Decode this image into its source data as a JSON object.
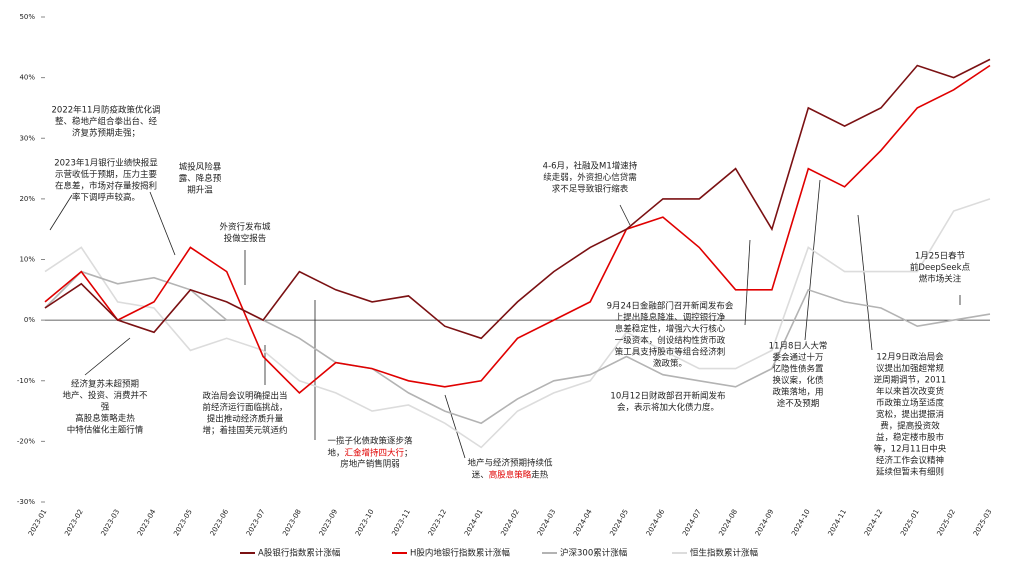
{
  "chart_data": {
    "type": "line",
    "x": [
      "2023-01",
      "2023-02",
      "2023-03",
      "2023-04",
      "2023-05",
      "2023-06",
      "2023-07",
      "2023-08",
      "2023-09",
      "2023-10",
      "2023-11",
      "2023-12",
      "2024-01",
      "2024-02",
      "2024-03",
      "2024-04",
      "2024-05",
      "2024-06",
      "2024-07",
      "2024-08",
      "2024-09",
      "2024-10",
      "2024-11",
      "2024-12",
      "2025-01",
      "2025-02",
      "2025-03"
    ],
    "series": [
      {
        "name": "A股银行指数累计涨幅",
        "color": "#7b1113",
        "values": [
          2,
          6,
          0,
          -2,
          5,
          3,
          0,
          8,
          5,
          3,
          4,
          -1,
          -3,
          3,
          8,
          12,
          15,
          20,
          20,
          25,
          15,
          35,
          32,
          35,
          42,
          40,
          43
        ]
      },
      {
        "name": "H股内地银行指数累计涨幅",
        "color": "#e00000",
        "values": [
          3,
          8,
          0,
          3,
          12,
          8,
          -6,
          -12,
          -7,
          -8,
          -10,
          -11,
          -10,
          -3,
          0,
          3,
          15,
          17,
          12,
          5,
          5,
          25,
          22,
          28,
          35,
          38,
          42
        ]
      },
      {
        "name": "沪深300累计涨幅",
        "color": "#b3b3b3",
        "values": [
          2,
          8,
          6,
          7,
          5,
          0,
          0,
          -3,
          -7,
          -8,
          -12,
          -15,
          -17,
          -13,
          -10,
          -9,
          -6,
          -9,
          -10,
          -11,
          -8,
          5,
          3,
          2,
          -1,
          0,
          1
        ]
      },
      {
        "name": "恒生指数累计涨幅",
        "color": "#dcdcdc",
        "values": [
          8,
          12,
          3,
          2,
          -5,
          -3,
          -5,
          -10,
          -12,
          -15,
          -14,
          -17,
          -21,
          -15,
          -12,
          -10,
          -2,
          -5,
          -8,
          -8,
          -5,
          12,
          8,
          8,
          8,
          18,
          20
        ]
      }
    ],
    "ylim": [
      -30,
      50
    ],
    "yticks": [
      {
        "value": -30,
        "label": "-30%"
      },
      {
        "value": -20,
        "label": "-20%"
      },
      {
        "value": -10,
        "label": "-10%"
      },
      {
        "value": 0,
        "label": "0%"
      },
      {
        "value": 10,
        "label": "10%"
      },
      {
        "value": 20,
        "label": "20%"
      },
      {
        "value": 30,
        "label": "30%"
      },
      {
        "value": 40,
        "label": "40%"
      },
      {
        "value": 50,
        "label": "50%"
      }
    ],
    "highlight_color": "#e00000",
    "annotations": [
      {
        "lines": [
          "2022年11月防疫政策优化调",
          "整、稳地产组合拳出台、经",
          "济复苏预期走强；"
        ]
      },
      {
        "lines": [
          "2023年1月银行业绩快报显",
          "示营收低于预期，压力主要",
          "在息差，市场对存量按揭利",
          "率下调呼声较高。"
        ]
      },
      {
        "lines": [
          "城投风险暴",
          "露、降息预",
          "期升温"
        ]
      },
      {
        "lines": [
          "外资行发布城",
          "投做空报告"
        ]
      },
      {
        "lines": [
          "经济复苏未超预期",
          "地产、投资、消费并不",
          "强",
          "高股息策略走热",
          "中特估催化主题行情"
        ]
      },
      {
        "lines": [
          "政治局会议明确提出当",
          "前经济运行面临挑战，",
          "提出推动经济质升量",
          "增；着挂国芙元筑适约"
        ]
      },
      {
        "lines": [
          "一揽子化债政策逐步落",
          [
            "地，",
            "汇金增持四大行",
            "；"
          ],
          "房地产销售阴弱"
        ]
      },
      {
        "lines": [
          "地产与经济预期持续低",
          [
            "迷、",
            "高股息策略",
            "走热"
          ]
        ]
      },
      {
        "lines": [
          "4-6月，社融及M1增速持",
          "续走弱，外资担心信贷需",
          "求不足导致银行缩表"
        ]
      },
      {
        "lines": [
          "9月24日金融部门召开新闻发布会",
          "上提出降息降准、调控银行净",
          "息差稳定性，增强六大行核心",
          "一级资本，创设结构性货币政",
          "策工具支持股市等组合经济刺",
          "激政策。"
        ]
      },
      {
        "lines": [
          "10月12日财政部召开新闻发布",
          "会，表示将加大化债力度。"
        ]
      },
      {
        "lines": [
          "11月8日人大常",
          "委会通过十万",
          "亿隐性债务置",
          "换议案，化债",
          "政策落地，用",
          "途不及预期"
        ]
      },
      {
        "lines": [
          "12月9日政治局会",
          "议提出加强超常规",
          "逆周期调节，2011",
          "年以来首次改变货",
          "币政策立场至适度",
          "宽松，提出提振消",
          "费，提高投资效",
          "益，稳定楼市股市",
          "等，12月11日中央",
          "经济工作会议精神",
          "延续但暂未有细则"
        ]
      },
      {
        "lines": [
          "1月25日春节",
          "前DeepSeek点",
          "燃市场关注"
        ]
      }
    ]
  }
}
